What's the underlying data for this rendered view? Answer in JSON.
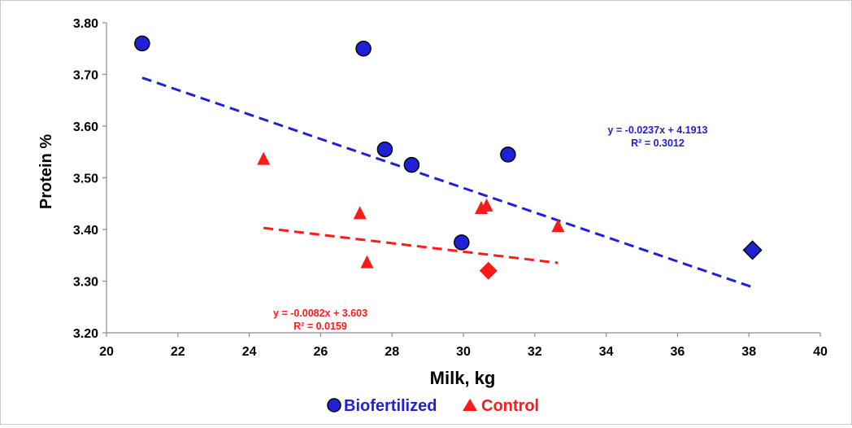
{
  "chart_data": {
    "type": "scatter",
    "xlabel": "Milk, kg",
    "ylabel": "Protein %",
    "xlim": [
      20,
      40
    ],
    "ylim": [
      3.2,
      3.8
    ],
    "x_ticks": [
      "20",
      "22",
      "24",
      "26",
      "28",
      "30",
      "32",
      "34",
      "36",
      "38",
      "40"
    ],
    "y_ticks": [
      "3.20",
      "3.30",
      "3.40",
      "3.50",
      "3.60",
      "3.70",
      "3.80"
    ],
    "grid": false,
    "legend_position": "bottom",
    "series": [
      {
        "name": "Biofertilized",
        "color": "#2020d8",
        "marker": "circle",
        "points": [
          {
            "x": 21.0,
            "y": 3.76
          },
          {
            "x": 27.2,
            "y": 3.75
          },
          {
            "x": 27.8,
            "y": 3.555
          },
          {
            "x": 28.55,
            "y": 3.525
          },
          {
            "x": 31.25,
            "y": 3.545
          },
          {
            "x": 29.95,
            "y": 3.375
          }
        ],
        "mean_point": {
          "x": 38.1,
          "y": 3.36,
          "marker": "diamond"
        },
        "trendline": {
          "slope": -0.0237,
          "intercept": 4.1913,
          "x_range": [
            21.0,
            38.1
          ],
          "style": "dashed"
        },
        "equation": "y = -0.0237x + 4.1913",
        "r_squared": "R² = 0.3012"
      },
      {
        "name": "Control",
        "color": "#ff1a1a",
        "marker": "triangle",
        "points": [
          {
            "x": 24.4,
            "y": 3.535
          },
          {
            "x": 27.1,
            "y": 3.43
          },
          {
            "x": 27.3,
            "y": 3.335
          },
          {
            "x": 30.5,
            "y": 3.44
          },
          {
            "x": 30.65,
            "y": 3.445
          },
          {
            "x": 32.65,
            "y": 3.405
          }
        ],
        "mean_point": {
          "x": 30.7,
          "y": 3.32,
          "marker": "diamond"
        },
        "trendline": {
          "slope": -0.0082,
          "intercept": 3.603,
          "x_range": [
            24.4,
            32.65
          ],
          "style": "dashed"
        },
        "equation": "y = -0.0082x + 3.603",
        "r_squared": "R² = 0.0159"
      }
    ]
  }
}
